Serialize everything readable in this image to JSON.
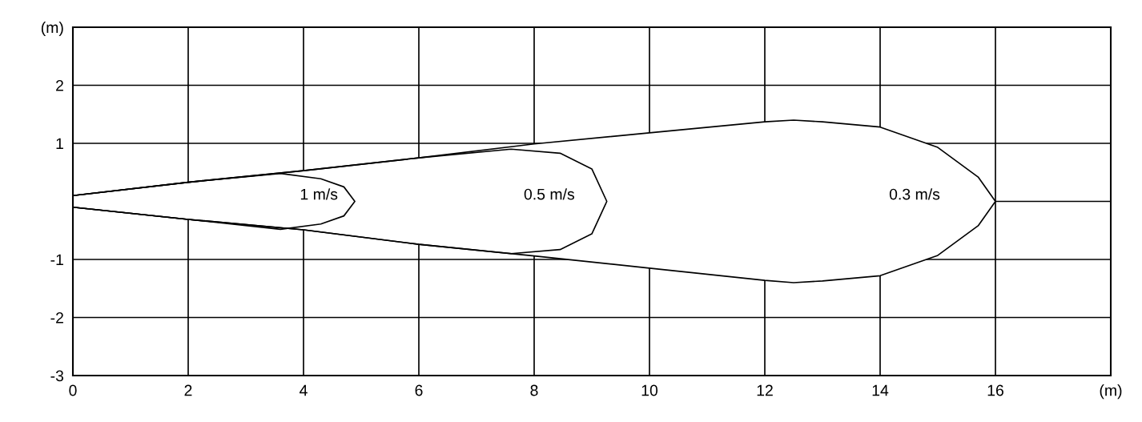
{
  "chart_data": {
    "type": "line",
    "xlim": [
      0,
      18
    ],
    "ylim": [
      -3,
      3
    ],
    "xticks": [
      0,
      2,
      4,
      6,
      8,
      10,
      12,
      14,
      16,
      {
        "value": 18,
        "label": "(m)"
      }
    ],
    "yticks": [
      -3,
      -2,
      -1,
      {
        "value": 0,
        "label": null
      },
      1,
      2,
      {
        "value": 3,
        "label": "(m)"
      }
    ],
    "grid": true,
    "marker": "none",
    "line_style": "solid",
    "series": [
      {
        "name": "1 m/s",
        "color": "#000000",
        "x": [
          0,
          2,
          3.6,
          4.3,
          4.7,
          4.89,
          4.7,
          4.3,
          3.6,
          2,
          0
        ],
        "values": [
          0.1,
          0.33,
          0.48,
          0.39,
          0.25,
          0,
          -0.25,
          -0.39,
          -0.48,
          -0.31,
          -0.1
        ]
      },
      {
        "name": "0.5 m/s",
        "color": "#000000",
        "x": [
          0,
          2,
          4,
          6,
          7.6,
          8.45,
          9.0,
          9.26,
          9.0,
          8.45,
          7.6,
          6,
          4,
          2,
          0
        ],
        "values": [
          0.1,
          0.33,
          0.53,
          0.75,
          0.9,
          0.83,
          0.56,
          0,
          -0.56,
          -0.83,
          -0.9,
          -0.74,
          -0.49,
          -0.31,
          -0.1
        ]
      },
      {
        "name": "0.3 m/s",
        "color": "#000000",
        "x": [
          0,
          2,
          4,
          6,
          8,
          10,
          12,
          12.5,
          13,
          14,
          15,
          15.7,
          16,
          15.7,
          15,
          14,
          13,
          12.5,
          12,
          10,
          8,
          6,
          4,
          2,
          0
        ],
        "values": [
          0.1,
          0.33,
          0.53,
          0.75,
          0.99,
          1.18,
          1.37,
          1.4,
          1.37,
          1.28,
          0.93,
          0.42,
          0,
          -0.42,
          -0.93,
          -1.28,
          -1.37,
          -1.4,
          -1.36,
          -1.15,
          -0.94,
          -0.74,
          -0.49,
          -0.31,
          -0.1
        ]
      }
    ]
  }
}
